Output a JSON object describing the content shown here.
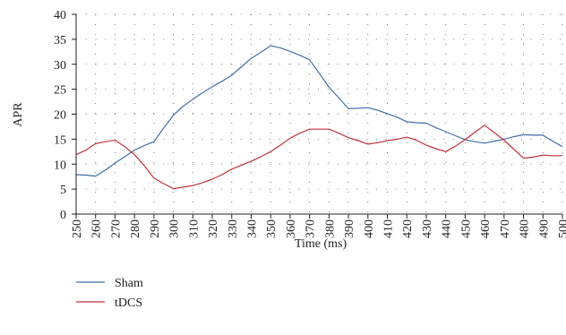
{
  "chart_data": {
    "type": "line",
    "title": "",
    "xlabel": "Time (ms)",
    "ylabel": "APR",
    "x": [
      250,
      255,
      260,
      265,
      270,
      275,
      280,
      285,
      290,
      295,
      300,
      305,
      310,
      315,
      320,
      325,
      330,
      335,
      340,
      345,
      350,
      355,
      360,
      365,
      370,
      375,
      380,
      385,
      390,
      395,
      400,
      405,
      410,
      415,
      420,
      425,
      430,
      435,
      440,
      445,
      450,
      455,
      460,
      465,
      470,
      475,
      480,
      485,
      490,
      495,
      500
    ],
    "xticks": [
      250,
      260,
      270,
      280,
      290,
      300,
      310,
      320,
      330,
      340,
      350,
      360,
      370,
      380,
      390,
      400,
      410,
      420,
      430,
      440,
      450,
      460,
      470,
      480,
      490,
      500
    ],
    "yticks": [
      0,
      5,
      10,
      15,
      20,
      25,
      30,
      35,
      40
    ],
    "xlim": [
      250,
      500
    ],
    "ylim": [
      0,
      40
    ],
    "grid": "dotted",
    "legend_position": "bottom-left",
    "series": [
      {
        "name": "Sham",
        "color": "#3f6fa8",
        "values": [
          7.9,
          7.8,
          7.6,
          8.8,
          10.2,
          11.5,
          12.8,
          13.7,
          14.5,
          17.2,
          19.8,
          21.6,
          23.0,
          24.3,
          25.5,
          26.6,
          27.8,
          29.5,
          31.2,
          32.4,
          33.7,
          33.3,
          32.6,
          31.8,
          30.9,
          28.2,
          25.4,
          23.3,
          21.1,
          21.2,
          21.3,
          20.8,
          20.1,
          19.4,
          18.5,
          18.3,
          18.2,
          17.3,
          16.5,
          15.7,
          14.9,
          14.5,
          14.2,
          14.6,
          15.0,
          15.5,
          15.9,
          15.8,
          15.8,
          14.6,
          13.5
        ]
      },
      {
        "name": "tDCS",
        "color": "#c0333a",
        "values": [
          11.9,
          12.8,
          14.1,
          14.5,
          14.8,
          13.5,
          11.9,
          9.7,
          7.2,
          6.1,
          5.1,
          5.4,
          5.7,
          6.3,
          7.0,
          7.9,
          9.0,
          9.8,
          10.6,
          11.5,
          12.5,
          13.8,
          15.2,
          16.2,
          17.0,
          17.0,
          17.0,
          16.2,
          15.3,
          14.7,
          14.0,
          14.3,
          14.7,
          15.0,
          15.4,
          14.8,
          13.8,
          13.1,
          12.5,
          13.6,
          14.9,
          16.4,
          17.8,
          16.3,
          14.8,
          13.0,
          11.2,
          11.4,
          11.8,
          11.7,
          11.7
        ]
      }
    ]
  }
}
